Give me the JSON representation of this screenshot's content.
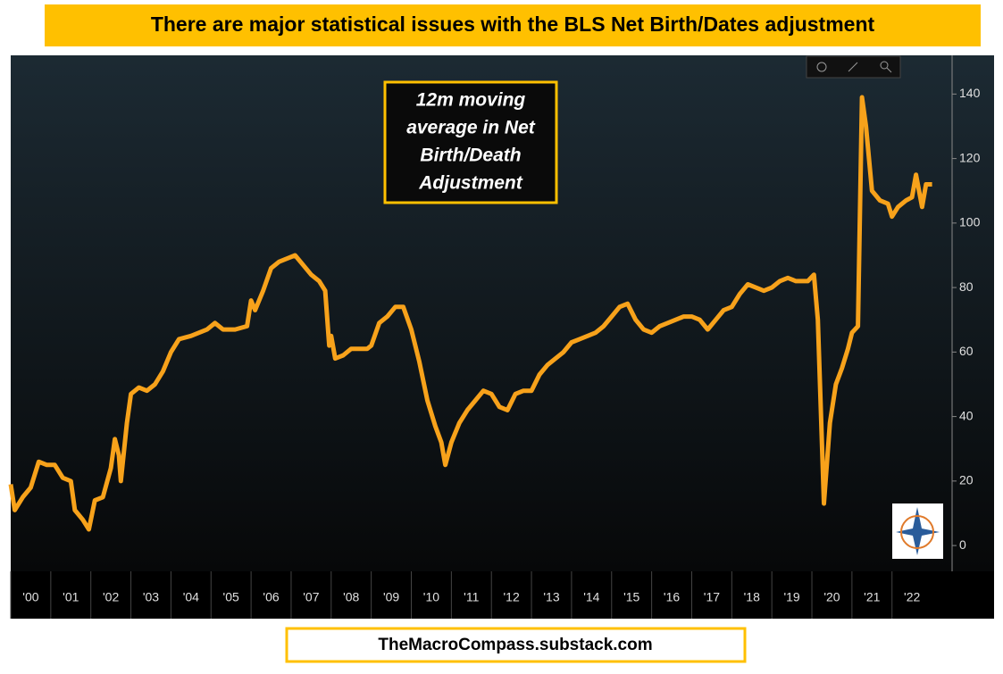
{
  "chart_data": {
    "type": "line",
    "title": "There are major statistical issues with the BLS Net Birth/Dates adjustment",
    "annotation": [
      "12m moving",
      "average in Net",
      "Birth/Death",
      "Adjustment"
    ],
    "footer": "TheMacroCompass.substack.com",
    "color": "#f7a21b",
    "x": [
      2000.0,
      2000.1,
      2000.3,
      2000.5,
      2000.7,
      2000.9,
      2001.1,
      2001.3,
      2001.5,
      2001.6,
      2001.8,
      2001.95,
      2002.1,
      2002.3,
      2002.5,
      2002.6,
      2002.7,
      2002.75,
      2002.9,
      2003.0,
      2003.2,
      2003.4,
      2003.6,
      2003.8,
      2004.0,
      2004.2,
      2004.5,
      2004.7,
      2004.9,
      2005.1,
      2005.3,
      2005.6,
      2005.9,
      2006.0,
      2006.1,
      2006.3,
      2006.5,
      2006.7,
      2006.9,
      2007.1,
      2007.3,
      2007.5,
      2007.7,
      2007.85,
      2007.95,
      2008.0,
      2008.1,
      2008.3,
      2008.5,
      2008.7,
      2008.9,
      2009.0,
      2009.2,
      2009.4,
      2009.6,
      2009.8,
      2010.0,
      2010.2,
      2010.4,
      2010.6,
      2010.75,
      2010.85,
      2011.0,
      2011.2,
      2011.4,
      2011.6,
      2011.8,
      2012.0,
      2012.2,
      2012.4,
      2012.6,
      2012.8,
      2013.0,
      2013.2,
      2013.4,
      2013.6,
      2013.8,
      2014.0,
      2014.2,
      2014.4,
      2014.6,
      2014.8,
      2015.0,
      2015.2,
      2015.4,
      2015.6,
      2015.8,
      2016.0,
      2016.2,
      2016.4,
      2016.6,
      2016.8,
      2017.0,
      2017.2,
      2017.4,
      2017.6,
      2017.8,
      2018.0,
      2018.2,
      2018.4,
      2018.6,
      2018.8,
      2019.0,
      2019.2,
      2019.4,
      2019.6,
      2019.9,
      2020.05,
      2020.15,
      2020.3,
      2020.45,
      2020.6,
      2020.75,
      2020.9,
      2021.0,
      2021.15,
      2021.25,
      2021.35,
      2021.5,
      2021.7,
      2021.9,
      2022.0,
      2022.15,
      2022.35,
      2022.5,
      2022.6,
      2022.75,
      2022.85,
      2023.0
    ],
    "values": [
      19,
      11,
      15,
      18,
      26,
      25,
      25,
      21,
      20,
      11,
      8,
      5,
      14,
      15,
      24,
      33,
      28,
      20,
      38,
      47,
      49,
      48,
      50,
      54,
      60,
      64,
      65,
      66,
      67,
      69,
      67,
      67,
      68,
      76,
      73,
      79,
      86,
      88,
      89,
      90,
      87,
      84,
      82,
      79,
      62,
      65,
      58,
      59,
      61,
      61,
      61,
      62,
      69,
      71,
      74,
      74,
      67,
      57,
      45,
      37,
      32,
      25,
      32,
      38,
      42,
      45,
      48,
      47,
      43,
      42,
      47,
      48,
      48,
      53,
      56,
      58,
      60,
      63,
      64,
      65,
      66,
      68,
      71,
      74,
      75,
      70,
      67,
      66,
      68,
      69,
      70,
      71,
      71,
      70,
      67,
      70,
      73,
      74,
      78,
      81,
      80,
      79,
      80,
      82,
      83,
      82,
      82,
      84,
      70,
      13,
      38,
      50,
      55,
      61,
      66,
      68,
      139,
      130,
      110,
      107,
      106,
      102,
      105,
      107,
      108,
      115,
      105,
      112,
      112
    ],
    "xlim": [
      2000,
      2023.5
    ],
    "xticks": [
      {
        "value": 2000,
        "label": "'00"
      },
      {
        "value": 2001,
        "label": "'01"
      },
      {
        "value": 2002,
        "label": "'02"
      },
      {
        "value": 2003,
        "label": "'03"
      },
      {
        "value": 2004,
        "label": "'04"
      },
      {
        "value": 2005,
        "label": "'05"
      },
      {
        "value": 2006,
        "label": "'06"
      },
      {
        "value": 2007,
        "label": "'07"
      },
      {
        "value": 2008,
        "label": "'08"
      },
      {
        "value": 2009,
        "label": "'09"
      },
      {
        "value": 2010,
        "label": "'10"
      },
      {
        "value": 2011,
        "label": "'11"
      },
      {
        "value": 2012,
        "label": "'12"
      },
      {
        "value": 2013,
        "label": "'13"
      },
      {
        "value": 2014,
        "label": "'14"
      },
      {
        "value": 2015,
        "label": "'15"
      },
      {
        "value": 2016,
        "label": "'16"
      },
      {
        "value": 2017,
        "label": "'17"
      },
      {
        "value": 2018,
        "label": "'18"
      },
      {
        "value": 2019,
        "label": "'19"
      },
      {
        "value": 2020,
        "label": "'20"
      },
      {
        "value": 2021,
        "label": "'21"
      },
      {
        "value": 2022,
        "label": "'22"
      }
    ],
    "ylim": [
      -8,
      152
    ],
    "yticks": [
      0,
      20,
      40,
      60,
      80,
      100,
      120,
      140
    ]
  }
}
